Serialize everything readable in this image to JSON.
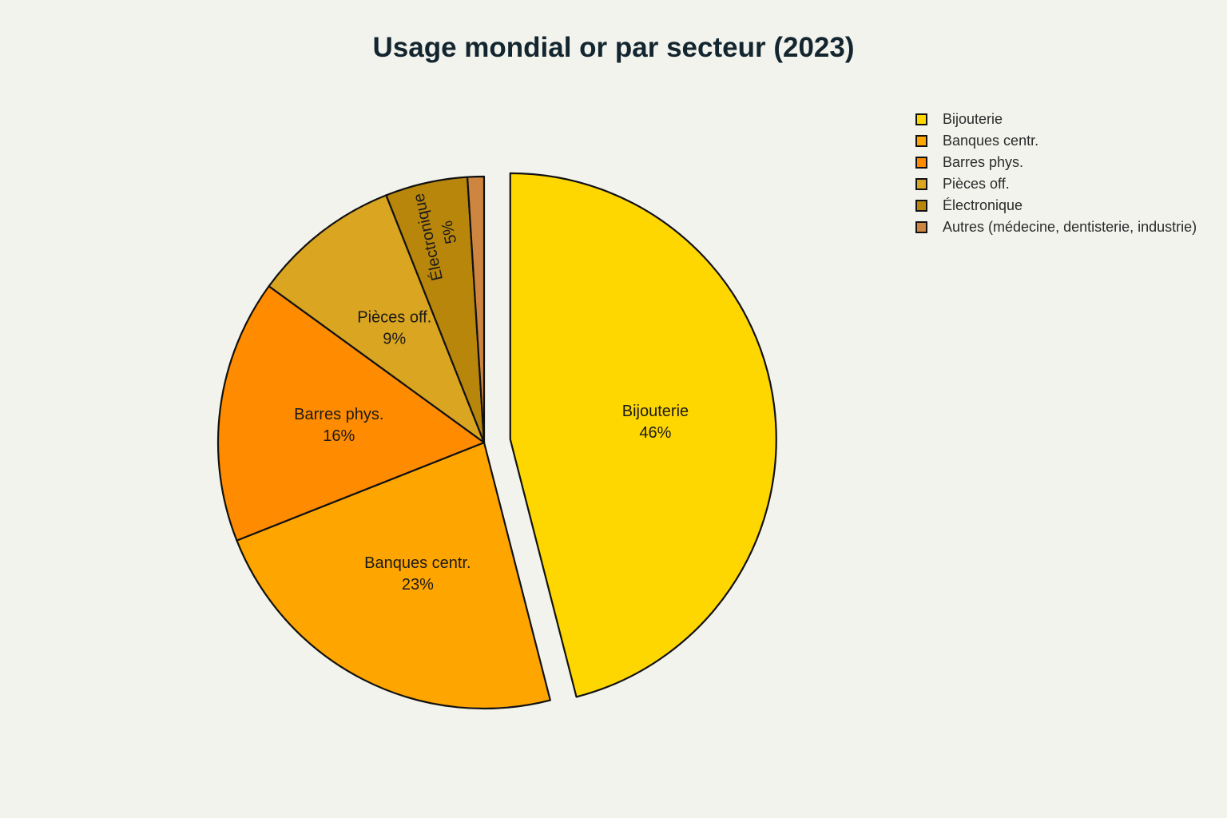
{
  "chart_data": {
    "type": "pie",
    "title": "Usage mondial or par secteur (2023)",
    "slices": [
      {
        "label": "Bijouterie",
        "value": 46,
        "value_label": "46%",
        "color": "#ffd700",
        "pulled": true
      },
      {
        "label": "Banques centr.",
        "value": 23,
        "value_label": "23%",
        "color": "#ffa500"
      },
      {
        "label": "Barres phys.",
        "value": 16,
        "value_label": "16%",
        "color": "#ff8c00"
      },
      {
        "label": "Pièces off.",
        "value": 9,
        "value_label": "9%",
        "color": "#daa520"
      },
      {
        "label": "Électronique",
        "value": 5,
        "value_label": "5%",
        "color": "#b8860b"
      },
      {
        "label": "Autres (médecine, dentisterie, industrie)",
        "value": 1,
        "value_label": "",
        "color": "#cd853f"
      }
    ],
    "legend": {
      "position": "top-right",
      "entries": [
        "Bijouterie",
        "Banques centr.",
        "Barres phys.",
        "Pièces off.",
        "Électronique",
        "Autres (médecine, dentisterie, industrie)"
      ]
    }
  }
}
